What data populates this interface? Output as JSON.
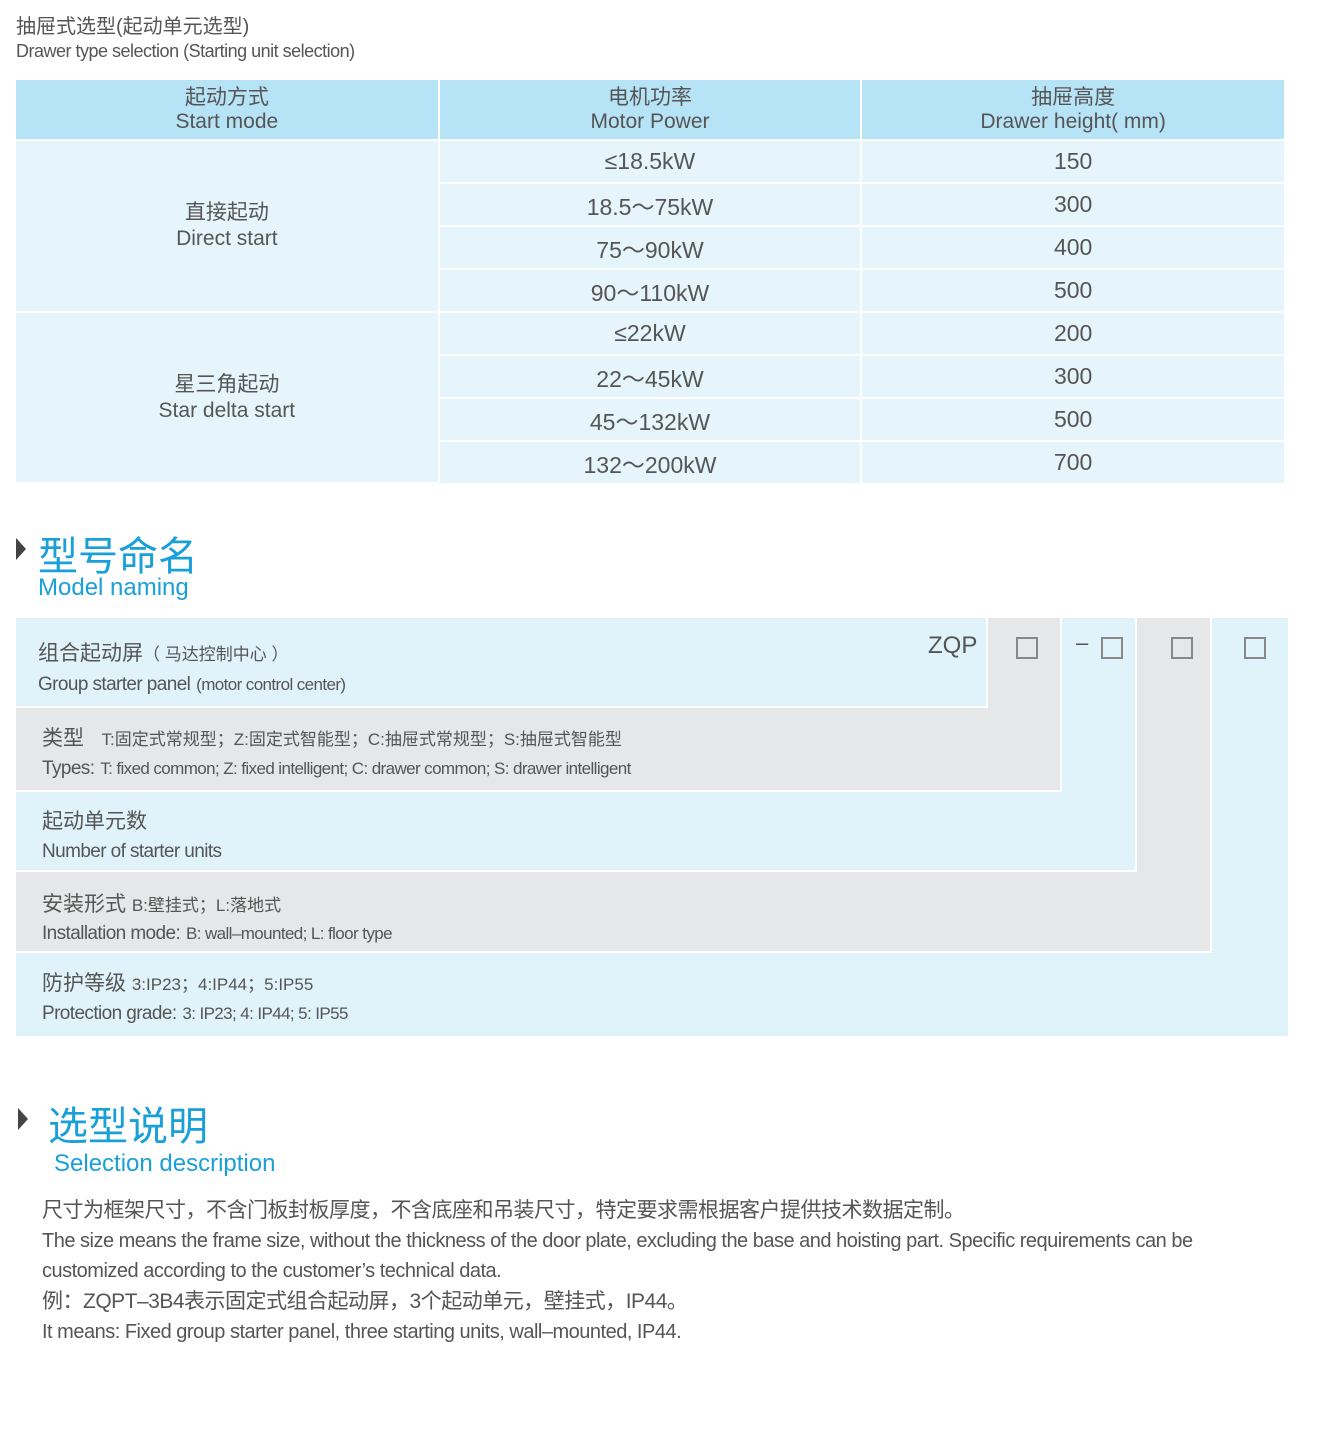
{
  "header": {
    "title_cn": "抽屉式选型(起动单元选型)",
    "title_en": "Drawer type selection (Starting unit selection)"
  },
  "table": {
    "columns": [
      {
        "cn": "起动方式",
        "en": "Start mode"
      },
      {
        "cn": "电机功率",
        "en": "Motor Power"
      },
      {
        "cn": "抽屉高度",
        "en": "Drawer height( mm)"
      }
    ],
    "groups": [
      {
        "cn": "直接起动",
        "en": "Direct start",
        "rows": [
          {
            "power": "≤18.5kW",
            "height": "150"
          },
          {
            "power": "18.5～75kW",
            "height": "300"
          },
          {
            "power": "75～90kW",
            "height": "400"
          },
          {
            "power": "90～110kW",
            "height": "500"
          }
        ]
      },
      {
        "cn": "星三角起动",
        "en": "Star delta start",
        "rows": [
          {
            "power": "≤22kW",
            "height": "200"
          },
          {
            "power": "22～45kW",
            "height": "300"
          },
          {
            "power": "45～132kW",
            "height": "500"
          },
          {
            "power": "132～200kW",
            "height": "700"
          }
        ]
      }
    ]
  },
  "model": {
    "title_cn": "型号命名",
    "title_en": "Model naming",
    "prefix": "ZQP",
    "dash": "–",
    "rows": [
      {
        "cn": "组合起动屏",
        "cn_sub": "（ 马达控制中心 ）",
        "en": "Group starter panel",
        "en_sub": "(motor control center)"
      },
      {
        "cn": "类型",
        "cn_sub": "T:固定式常规型；Z:固定式智能型；C:抽屉式常规型；S:抽屉式智能型",
        "en": "Types:",
        "en_sub": "T: fixed common; Z: fixed intelligent; C: drawer common; S: drawer intelligent"
      },
      {
        "cn": "起动单元数",
        "cn_sub": "",
        "en": "Number of starter units",
        "en_sub": ""
      },
      {
        "cn": "安装形式",
        "cn_sub": "B:壁挂式；L:落地式",
        "en": "Installation mode:",
        "en_sub": "B: wall–mounted; L: floor type"
      },
      {
        "cn": "防护等级",
        "cn_sub": "3:IP23；4:IP44；5:IP55",
        "en": "Protection grade:",
        "en_sub": "3: IP23; 4: IP44; 5: IP55"
      }
    ]
  },
  "selection": {
    "title_cn": "选型说明",
    "title_en": "Selection description",
    "lines": [
      "尺寸为框架尺寸，不含门板封板厚度，不含底座和吊装尺寸，特定要求需根据客户提供技术数据定制。",
      "The size means the frame size, without the thickness of the door plate, excluding the base and hoisting part. Specific requirements can be customized according to the customer’s technical data.",
      "例：ZQPT–3B4表示固定式组合起动屏，3个起动单元，壁挂式，IP44。",
      "It means: Fixed group starter panel, three starting units, wall–mounted, IP44."
    ]
  },
  "colors": {
    "header": "#b7e3f7",
    "cell": "#e6f5fc",
    "panel_blue": "#e0f3fa",
    "panel_gray": "#e6e7e8",
    "accent": "#1aa0d8"
  }
}
